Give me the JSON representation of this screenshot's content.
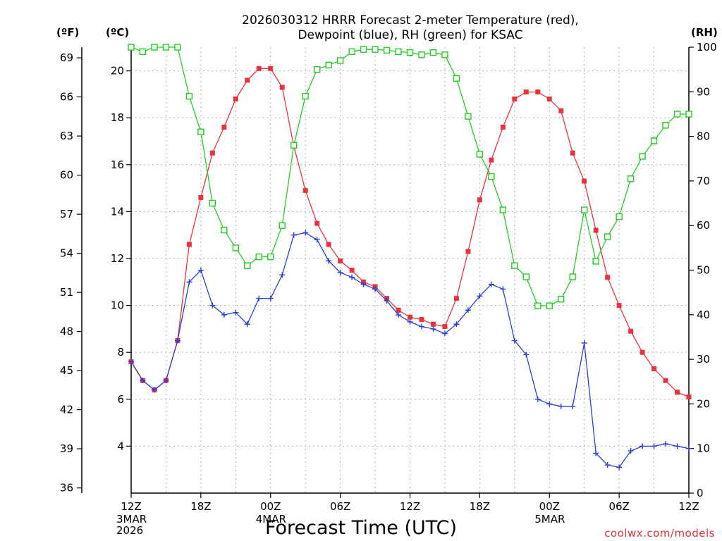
{
  "chart_data": {
    "type": "line",
    "title_lines": [
      "2026030312 HRRR Forecast 2-meter Temperature (red),",
      "Dewpoint (blue), RH (green) for KSAC"
    ],
    "xlabel": "Forecast Time (UTC)",
    "credit": "coolwx.com/models",
    "units": {
      "fahrenheit": "(ºF)",
      "celsius": "(ºC)",
      "rh": "(RH)"
    },
    "x_range_hours": [
      0,
      48
    ],
    "celsius_range": [
      2,
      21
    ],
    "rh_range": [
      0,
      100
    ],
    "x_ticks": [
      {
        "hour": 0,
        "label": "12Z",
        "sub": [
          "3MAR",
          "2026"
        ]
      },
      {
        "hour": 6,
        "label": "18Z",
        "sub": []
      },
      {
        "hour": 12,
        "label": "00Z",
        "sub": [
          "4MAR"
        ]
      },
      {
        "hour": 18,
        "label": "06Z",
        "sub": []
      },
      {
        "hour": 24,
        "label": "12Z",
        "sub": []
      },
      {
        "hour": 30,
        "label": "18Z",
        "sub": []
      },
      {
        "hour": 36,
        "label": "00Z",
        "sub": [
          "5MAR"
        ]
      },
      {
        "hour": 42,
        "label": "06Z",
        "sub": []
      },
      {
        "hour": 48,
        "label": "12Z",
        "sub": []
      }
    ],
    "celsius_ticks": [
      4,
      6,
      8,
      10,
      12,
      14,
      16,
      18,
      20
    ],
    "fahrenheit_ticks": [
      36,
      39,
      42,
      45,
      48,
      51,
      54,
      57,
      60,
      63,
      66,
      69
    ],
    "rh_ticks": [
      0,
      10,
      20,
      30,
      40,
      50,
      60,
      70,
      80,
      90,
      100
    ],
    "series": [
      {
        "name": "2-meter Temperature",
        "axis": "celsius",
        "color": "#e8333c",
        "marker": "filled-square",
        "values": [
          7.6,
          6.8,
          6.4,
          6.8,
          8.5,
          12.6,
          14.6,
          16.5,
          17.6,
          18.8,
          19.6,
          20.1,
          20.1,
          19.3,
          16.8,
          14.9,
          13.5,
          12.6,
          11.9,
          11.5,
          11.0,
          10.8,
          10.3,
          9.8,
          9.5,
          9.4,
          9.2,
          9.1,
          10.3,
          12.3,
          14.5,
          16.2,
          17.6,
          18.8,
          19.1,
          19.1,
          18.8,
          18.3,
          16.5,
          15.3,
          13.2,
          11.2,
          10.0,
          8.9,
          8.0,
          7.3,
          6.8,
          6.3,
          6.1
        ]
      },
      {
        "name": "Dewpoint",
        "axis": "celsius",
        "color": "#2a3fd6",
        "marker": "plus",
        "values": [
          7.6,
          6.8,
          6.4,
          6.8,
          8.5,
          11.0,
          11.5,
          10.0,
          9.6,
          9.7,
          9.2,
          10.3,
          10.3,
          11.3,
          13.0,
          13.1,
          12.8,
          11.9,
          11.4,
          11.2,
          10.9,
          10.7,
          10.2,
          9.6,
          9.3,
          9.1,
          9.0,
          8.8,
          9.2,
          9.8,
          10.4,
          10.9,
          10.7,
          8.5,
          7.9,
          6.0,
          5.8,
          5.7,
          5.7,
          8.4,
          3.7,
          3.2,
          3.1,
          3.8,
          4.0,
          4.0,
          4.1,
          4.0,
          3.9
        ]
      },
      {
        "name": "Relative Humidity",
        "axis": "rh",
        "color": "#22cc22",
        "marker": "open-square",
        "values": [
          100,
          99,
          100,
          100,
          100,
          89,
          81,
          65,
          59,
          55,
          51,
          53,
          53,
          60,
          78,
          89,
          95,
          96,
          97,
          99,
          99.5,
          99.5,
          99.3,
          99,
          98.8,
          98.3,
          98.8,
          98.3,
          93,
          84.5,
          76,
          71,
          63.5,
          51,
          48.5,
          42,
          42,
          43.5,
          48.5,
          63.5,
          52,
          57.5,
          62,
          70.5,
          75.5,
          79,
          82.5,
          85,
          85
        ]
      }
    ]
  }
}
